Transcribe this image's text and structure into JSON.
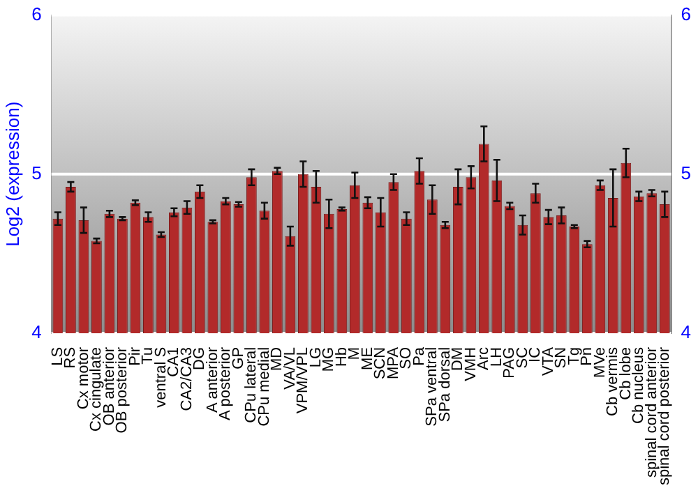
{
  "chart_data": {
    "type": "bar",
    "ylabel": "Log2 (expression)",
    "categories": [
      "LS",
      "RS",
      "Cx motor",
      "Cx cingulate",
      "OB anterior",
      "OB posterior",
      "Pir",
      "Tu",
      "ventral S",
      "CA1",
      "CA2/CA3",
      "DG",
      "A anterior",
      "A posterior",
      "GP",
      "CPu lateral",
      "CPu medial",
      "MD",
      "VA/VL",
      "VPM/VPL",
      "LG",
      "MG",
      "Hb",
      "M",
      "ME",
      "SCN",
      "MPA",
      "SO",
      "Pa",
      "SPa ventral",
      "SPa dorsal",
      "DM",
      "VMH",
      "Arc",
      "LH",
      "PAG",
      "SC",
      "IC",
      "VTA",
      "SN",
      "Tg",
      "Pn",
      "MVe",
      "Cb vermis",
      "Cb lobe",
      "Cb nucleus",
      "spinal cord anterior",
      "spinal cord posterior"
    ],
    "values": [
      4.72,
      4.92,
      4.71,
      4.58,
      4.75,
      4.72,
      4.82,
      4.73,
      4.62,
      4.76,
      4.79,
      4.89,
      4.7,
      4.83,
      4.81,
      4.98,
      4.77,
      5.02,
      4.61,
      5.0,
      4.92,
      4.75,
      4.78,
      4.93,
      4.82,
      4.76,
      4.95,
      4.72,
      5.02,
      4.84,
      4.68,
      4.92,
      4.98,
      5.19,
      4.96,
      4.8,
      4.68,
      4.88,
      4.73,
      4.74,
      4.67,
      4.56,
      4.93,
      4.85,
      5.07,
      4.86,
      4.88,
      4.81
    ],
    "errors": [
      0.04,
      0.03,
      0.08,
      0.015,
      0.02,
      0.01,
      0.015,
      0.03,
      0.015,
      0.025,
      0.04,
      0.04,
      0.01,
      0.02,
      0.015,
      0.05,
      0.05,
      0.02,
      0.06,
      0.08,
      0.1,
      0.09,
      0.01,
      0.08,
      0.035,
      0.09,
      0.05,
      0.04,
      0.08,
      0.09,
      0.02,
      0.11,
      0.07,
      0.11,
      0.13,
      0.02,
      0.06,
      0.06,
      0.045,
      0.05,
      0.01,
      0.02,
      0.03,
      0.18,
      0.09,
      0.03,
      0.02,
      0.08
    ],
    "color": "#b22a2a",
    "ylim": [
      4,
      6
    ],
    "yticks": [
      4,
      5,
      6
    ],
    "y2lim": [
      4,
      6
    ],
    "y2ticks": [
      4,
      5,
      6
    ],
    "grid": "y",
    "legend": false
  }
}
